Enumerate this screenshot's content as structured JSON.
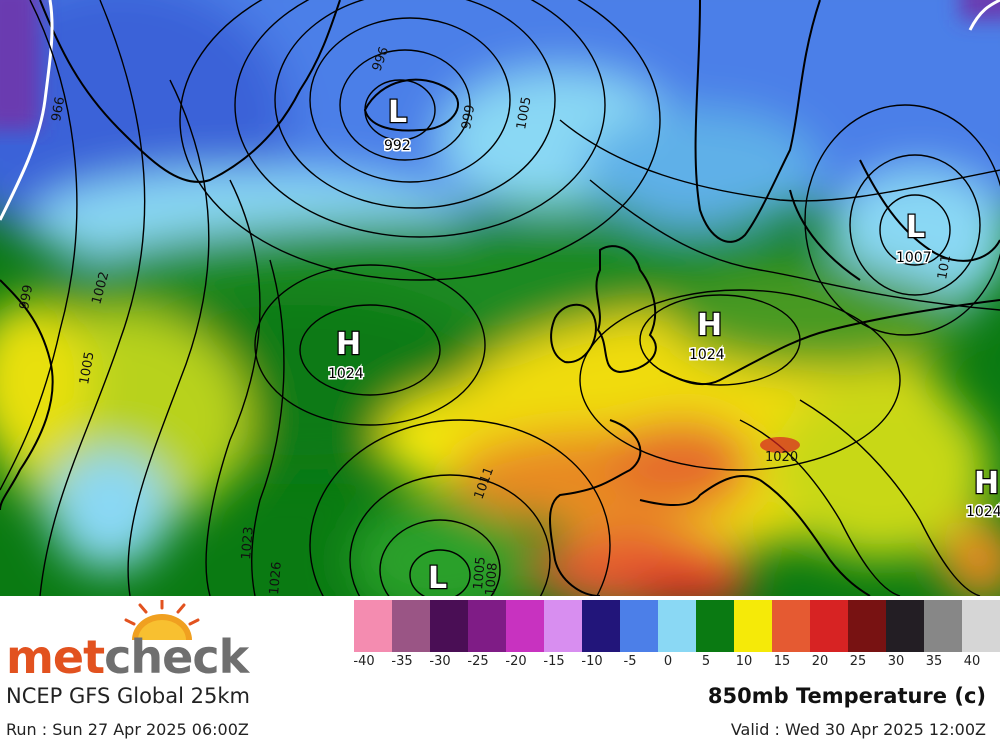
{
  "brand": {
    "part1": "met",
    "part2": "check"
  },
  "model_title": "NCEP GFS Global 25km",
  "run_text": "Run : Sun 27 Apr 2025 06:00Z",
  "field_title": "850mb Temperature (c)",
  "valid_text": "Valid : Wed 30 Apr 2025 12:00Z",
  "legend": {
    "ticks": [
      "-40",
      "-35",
      "-30",
      "-25",
      "-20",
      "-15",
      "-10",
      "-5",
      "0",
      "5",
      "10",
      "15",
      "20",
      "25",
      "30",
      "35",
      "40"
    ],
    "colors": [
      "#f48cb0",
      "#9a5585",
      "#4a0e55",
      "#7f1c86",
      "#c832c0",
      "#d88ef0",
      "#22157a",
      "#4c7fe8",
      "#8ad8f4",
      "#0a7a12",
      "#f5ea08",
      "#e55a32",
      "#d72323",
      "#781212",
      "#231e24",
      "#878787",
      "#d6d6d6"
    ]
  },
  "pressure_systems": [
    {
      "type": "L",
      "value": "992"
    },
    {
      "type": "H",
      "value": "1024"
    },
    {
      "type": "H",
      "value": "1024"
    },
    {
      "type": "L",
      "value": "1007"
    },
    {
      "type": "H",
      "value": "1024"
    },
    {
      "type": "L",
      "value": ""
    }
  ],
  "isobar_labels": [
    "996",
    "999",
    "1005",
    "1002",
    "1005",
    "1011",
    "1020",
    "1023",
    "1026",
    "1005",
    "1008",
    "101",
    "999",
    "966"
  ]
}
